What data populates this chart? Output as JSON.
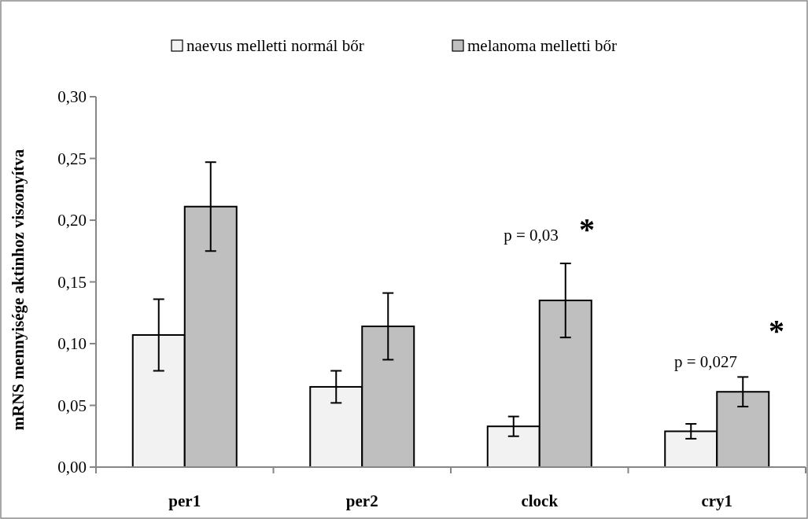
{
  "chart_data": {
    "type": "bar",
    "ylabel": "mRNS mennyisége aktinhoz viszonyítva",
    "categories": [
      "per1",
      "per2",
      "clock",
      "cry1"
    ],
    "series": [
      {
        "name": "naevus melletti normál bőr",
        "color": "#f2f2f2",
        "values": [
          0.107,
          0.065,
          0.033,
          0.029
        ],
        "errors": [
          0.029,
          0.013,
          0.008,
          0.006
        ]
      },
      {
        "name": "melanoma melletti bőr",
        "color": "#bfbfbf",
        "values": [
          0.211,
          0.114,
          0.135,
          0.061
        ],
        "errors": [
          0.036,
          0.027,
          0.03,
          0.012
        ]
      }
    ],
    "ylim": [
      0,
      0.3
    ],
    "yticks": [
      {
        "value": 0,
        "label": "0,00"
      },
      {
        "value": 0.05,
        "label": "0,05"
      },
      {
        "value": 0.1,
        "label": "0,10"
      },
      {
        "value": 0.15,
        "label": "0,15"
      },
      {
        "value": 0.2,
        "label": "0,20"
      },
      {
        "value": 0.25,
        "label": "0,25"
      },
      {
        "value": 0.3,
        "label": "0,30"
      }
    ],
    "annotations": [
      "p = 0,03",
      "*",
      "p = 0,027",
      "*"
    ],
    "legend": "top",
    "grid": false
  }
}
